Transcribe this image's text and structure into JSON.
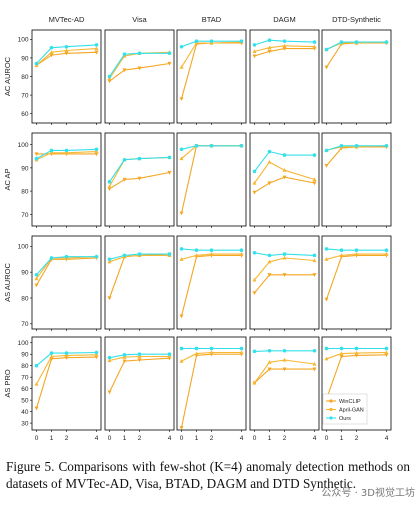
{
  "caption": "Figure 5. Comparisons with few-shot (K=4) anomaly detection methods on datasets of MVTec-AD, Visa, BTAD, DAGM and DTD Synthetic.",
  "watermark": "公众号 · 3D视觉工坊",
  "colors": {
    "WinCLIP": "#f5a623",
    "April-GAN": "#f7b733",
    "Ours": "#34e0ea"
  },
  "chart_data": {
    "type": "line",
    "x": [
      0,
      1,
      2,
      4
    ],
    "columns": [
      "MVTec-AD",
      "Visa",
      "BTAD",
      "DAGM",
      "DTD-Synthetic"
    ],
    "rows": [
      {
        "ylabel": "AC AUROC",
        "ylim": [
          55,
          105
        ],
        "yticks": [
          60,
          70,
          80,
          90,
          100
        ]
      },
      {
        "ylabel": "AC AP",
        "ylim": [
          65,
          105
        ],
        "yticks": [
          70,
          80,
          90,
          100
        ]
      },
      {
        "ylabel": "AS AUROC",
        "ylim": [
          68,
          104
        ],
        "yticks": [
          70,
          80,
          90,
          100
        ]
      },
      {
        "ylabel": "AS PRO",
        "ylim": [
          24,
          105
        ],
        "yticks": [
          30,
          40,
          50,
          60,
          70,
          80,
          90,
          100
        ]
      }
    ],
    "legend": {
      "position": "bottom-right of DTD-Synthetic AS PRO panel",
      "entries": [
        "WinCLIP",
        "April-GAN",
        "Ours"
      ]
    },
    "series_names": [
      "WinCLIP",
      "April-GAN",
      "Ours"
    ],
    "panels": [
      [
        {
          "WinCLIP": [
            86,
            91.5,
            92.5,
            93
          ],
          "April-GAN": [
            86,
            93,
            94,
            95
          ],
          "Ours": [
            87,
            95.5,
            96,
            97
          ]
        },
        {
          "WinCLIP": [
            77.5,
            83.5,
            84.5,
            87
          ],
          "April-GAN": [
            79,
            91,
            92.5,
            93
          ],
          "Ours": [
            80,
            92,
            92.5,
            92.5
          ]
        },
        {
          "WinCLIP": [
            68,
            97.5,
            98,
            98
          ],
          "April-GAN": [
            85,
            98,
            98,
            98.5
          ],
          "Ours": [
            96,
            99,
            99,
            99
          ]
        },
        {
          "WinCLIP": [
            91,
            93.5,
            95,
            95
          ],
          "April-GAN": [
            93.5,
            95.5,
            96.5,
            96
          ],
          "Ours": [
            97,
            99.5,
            99,
            98.5
          ]
        },
        {
          "WinCLIP": [
            85,
            97.5,
            98,
            98
          ],
          "April-GAN": [
            94.5,
            98,
            98,
            98.5
          ],
          "Ours": [
            94.5,
            98.5,
            98.5,
            98.5
          ]
        }
      ],
      [
        {
          "WinCLIP": [
            96,
            96,
            96,
            96
          ],
          "April-GAN": [
            93.5,
            96.5,
            96.5,
            97
          ],
          "Ours": [
            94,
            97.5,
            97.5,
            98
          ]
        },
        {
          "WinCLIP": [
            81,
            85,
            85.5,
            88
          ],
          "April-GAN": [
            82,
            93.5,
            94,
            94.5
          ],
          "Ours": [
            84,
            93.5,
            94,
            94.5
          ]
        },
        {
          "WinCLIP": [
            70.5,
            99.5,
            99.5,
            99.5
          ],
          "April-GAN": [
            94,
            99.5,
            99.5,
            99.5
          ],
          "Ours": [
            98,
            99.5,
            99.5,
            99.5
          ]
        },
        {
          "WinCLIP": [
            79.5,
            83.5,
            86,
            83.5
          ],
          "April-GAN": [
            83.5,
            92.5,
            89,
            85
          ],
          "Ours": [
            88.5,
            97,
            95.5,
            95.5
          ]
        },
        {
          "WinCLIP": [
            91,
            98.5,
            99,
            99
          ],
          "April-GAN": [
            97.5,
            99,
            99,
            99.5
          ],
          "Ours": [
            97.5,
            99.5,
            99.5,
            99.5
          ]
        }
      ],
      [
        {
          "WinCLIP": [
            85,
            95,
            95,
            95.5
          ],
          "April-GAN": [
            87.5,
            95.5,
            95.5,
            96
          ],
          "Ours": [
            89,
            95.5,
            96,
            96
          ]
        },
        {
          "WinCLIP": [
            80,
            96,
            96.5,
            97
          ],
          "April-GAN": [
            94,
            96,
            96.5,
            96.5
          ],
          "Ours": [
            95,
            96.5,
            97,
            97
          ]
        },
        {
          "WinCLIP": [
            73,
            96,
            96.5,
            96.5
          ],
          "April-GAN": [
            95,
            96.5,
            97,
            97
          ],
          "Ours": [
            99,
            98.5,
            98.5,
            98.5
          ]
        },
        {
          "WinCLIP": [
            82,
            89,
            89,
            89
          ],
          "April-GAN": [
            87,
            94,
            95.5,
            94.5
          ],
          "Ours": [
            97.5,
            96.5,
            97,
            96.5
          ]
        },
        {
          "WinCLIP": [
            79.5,
            96,
            96.5,
            96.5
          ],
          "April-GAN": [
            95,
            96.5,
            97,
            97
          ],
          "Ours": [
            99,
            98.5,
            98.5,
            98.5
          ]
        }
      ],
      [
        {
          "WinCLIP": [
            43,
            86,
            87,
            87.5
          ],
          "April-GAN": [
            64,
            88,
            89,
            89.5
          ],
          "Ours": [
            80,
            91,
            91,
            91.5
          ]
        },
        {
          "WinCLIP": [
            57,
            84,
            85,
            86.5
          ],
          "April-GAN": [
            84.5,
            87.5,
            88,
            88
          ],
          "Ours": [
            87,
            89.5,
            90,
            90
          ]
        },
        {
          "WinCLIP": [
            26,
            89,
            90,
            90
          ],
          "April-GAN": [
            84,
            90.5,
            91.5,
            91.5
          ],
          "Ours": [
            95,
            95,
            95,
            95
          ]
        },
        {
          "WinCLIP": [
            65,
            77,
            77,
            77
          ],
          "April-GAN": [
            65,
            83,
            85,
            81.5
          ],
          "Ours": [
            92.5,
            93,
            93,
            93
          ]
        },
        {
          "WinCLIP": [
            51,
            88,
            89,
            89.5
          ],
          "April-GAN": [
            86,
            90.5,
            91,
            91.5
          ],
          "Ours": [
            95,
            95,
            95,
            95
          ]
        }
      ]
    ]
  }
}
